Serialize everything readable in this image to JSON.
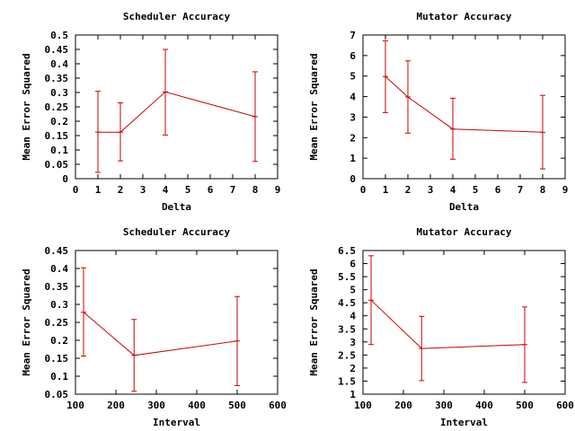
{
  "chart_data": [
    {
      "type": "line",
      "title": "Scheduler Accuracy",
      "xlabel": "Delta",
      "ylabel": "Mean Error Squared",
      "xlim": [
        0,
        9
      ],
      "ylim": [
        0,
        0.5
      ],
      "xticks": [
        0,
        1,
        2,
        3,
        4,
        5,
        6,
        7,
        8,
        9
      ],
      "xtick_labels": [
        "0",
        "1",
        "2",
        "3",
        "4",
        "5",
        "6",
        "7",
        "8",
        "9"
      ],
      "yticks": [
        0,
        0.05,
        0.1,
        0.15,
        0.2,
        0.25,
        0.3,
        0.35,
        0.4,
        0.45,
        0.5
      ],
      "ytick_labels": [
        "0",
        "0.05",
        "0.1",
        "0.15",
        "0.2",
        "0.25",
        "0.3",
        "0.35",
        "0.4",
        "0.45",
        "0.5"
      ],
      "grid": false,
      "legend": false,
      "color": "#cc0000",
      "series": [
        {
          "x": [
            1,
            2,
            4,
            8
          ],
          "y": [
            0.162,
            0.162,
            0.302,
            0.216
          ],
          "err_low": [
            0.022,
            0.062,
            0.152,
            0.06
          ],
          "err_high": [
            0.304,
            0.264,
            0.45,
            0.372
          ]
        }
      ]
    },
    {
      "type": "line",
      "title": "Mutator Accuracy",
      "xlabel": "Delta",
      "ylabel": "Mean Error Squared",
      "xlim": [
        0,
        9
      ],
      "ylim": [
        0,
        7
      ],
      "xticks": [
        0,
        1,
        2,
        3,
        4,
        5,
        6,
        7,
        8,
        9
      ],
      "xtick_labels": [
        "0",
        "1",
        "2",
        "3",
        "4",
        "5",
        "6",
        "7",
        "8",
        "9"
      ],
      "yticks": [
        0,
        1,
        2,
        3,
        4,
        5,
        6,
        7
      ],
      "ytick_labels": [
        "0",
        "1",
        "2",
        "3",
        "4",
        "5",
        "6",
        "7"
      ],
      "grid": false,
      "legend": false,
      "color": "#cc0000",
      "series": [
        {
          "x": [
            1,
            2,
            4,
            8
          ],
          "y": [
            4.98,
            3.98,
            2.42,
            2.26
          ],
          "err_low": [
            3.22,
            2.22,
            0.95,
            0.48
          ],
          "err_high": [
            6.72,
            5.74,
            3.92,
            4.06
          ]
        }
      ]
    },
    {
      "type": "line",
      "title": "Scheduler Accuracy",
      "xlabel": "Interval",
      "ylabel": "Mean Error Squared",
      "xlim": [
        100,
        600
      ],
      "ylim": [
        0.05,
        0.45
      ],
      "xticks": [
        100,
        200,
        300,
        400,
        500,
        600
      ],
      "xtick_labels": [
        "100",
        "200",
        "300",
        "400",
        "500",
        "600"
      ],
      "yticks": [
        0.05,
        0.1,
        0.15,
        0.2,
        0.25,
        0.3,
        0.35,
        0.4,
        0.45
      ],
      "ytick_labels": [
        "0.05",
        "0.1",
        "0.15",
        "0.2",
        "0.25",
        "0.3",
        "0.35",
        "0.4",
        "0.45"
      ],
      "grid": false,
      "legend": false,
      "color": "#cc0000",
      "series": [
        {
          "x": [
            120,
            245,
            500
          ],
          "y": [
            0.278,
            0.158,
            0.198
          ],
          "err_low": [
            0.156,
            0.058,
            0.074
          ],
          "err_high": [
            0.402,
            0.258,
            0.322
          ]
        }
      ]
    },
    {
      "type": "line",
      "title": "Mutator Accuracy",
      "xlabel": "Interval",
      "ylabel": "Mean Error Squared",
      "xlim": [
        100,
        600
      ],
      "ylim": [
        1,
        6.5
      ],
      "xticks": [
        100,
        200,
        300,
        400,
        500,
        600
      ],
      "xtick_labels": [
        "100",
        "200",
        "300",
        "400",
        "500",
        "600"
      ],
      "yticks": [
        1,
        1.5,
        2,
        2.5,
        3,
        3.5,
        4,
        4.5,
        5,
        5.5,
        6,
        6.5
      ],
      "ytick_labels": [
        "1",
        "1.5",
        "2",
        "2.5",
        "3",
        "3.5",
        "4",
        "4.5",
        "5",
        "5.5",
        "6",
        "6.5"
      ],
      "grid": false,
      "legend": false,
      "color": "#cc0000",
      "series": [
        {
          "x": [
            120,
            245,
            500
          ],
          "y": [
            4.6,
            2.75,
            2.9
          ],
          "err_low": [
            2.9,
            1.52,
            1.45
          ],
          "err_high": [
            6.3,
            3.98,
            4.34
          ]
        }
      ]
    }
  ]
}
